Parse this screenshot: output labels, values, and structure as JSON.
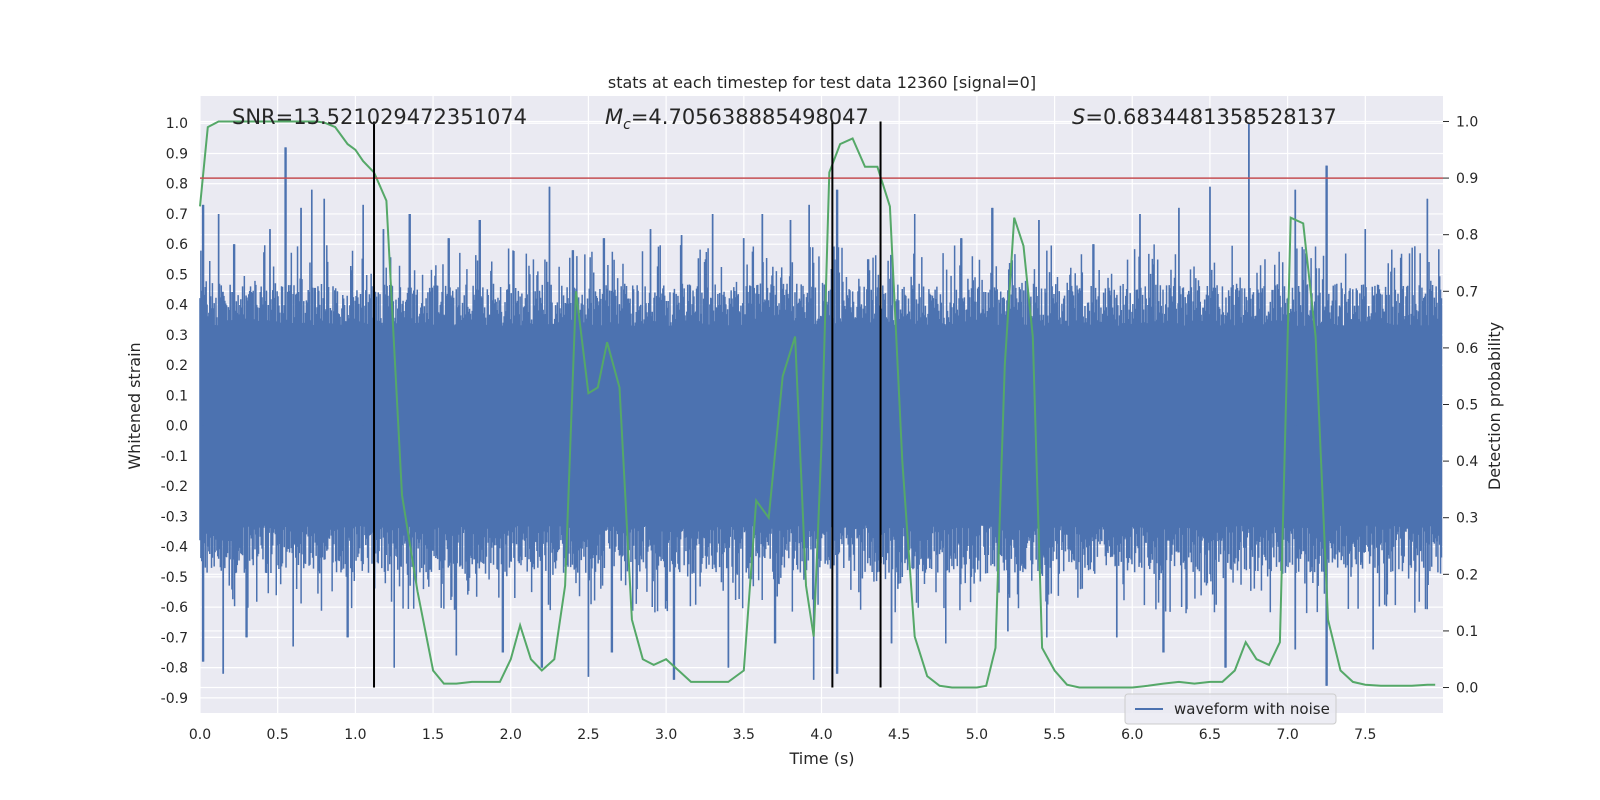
{
  "chart_data": {
    "type": "line",
    "title": "stats at each timestep for test data 12360 [signal=0]",
    "xlabel": "Time (s)",
    "ylabel": "Whitened strain",
    "ylabel_right": "Detection probability",
    "xlim": [
      0.0,
      8.0
    ],
    "ylim": [
      -0.95,
      1.09
    ],
    "ylim_right": [
      -0.045,
      1.045
    ],
    "x_ticks": [
      "0.0",
      "0.5",
      "1.0",
      "1.5",
      "2.0",
      "2.5",
      "3.0",
      "3.5",
      "4.0",
      "4.5",
      "5.0",
      "5.5",
      "6.0",
      "6.5",
      "7.0",
      "7.5"
    ],
    "y_ticks": [
      "1.0",
      "0.9",
      "0.8",
      "0.7",
      "0.6",
      "0.5",
      "0.4",
      "0.3",
      "0.2",
      "0.1",
      "0.0",
      "-0.1",
      "-0.2",
      "-0.3",
      "-0.4",
      "-0.5",
      "-0.6",
      "-0.7",
      "-0.8",
      "-0.9"
    ],
    "y_ticks_right": [
      "1.0",
      "0.9",
      "0.8",
      "0.7",
      "0.6",
      "0.5",
      "0.4",
      "0.3",
      "0.2",
      "0.1",
      "0.0"
    ],
    "annotations": {
      "snr": "SNR=13.521029472351074",
      "mc_symbol": "M",
      "mc_sub": "c",
      "mc_value": "=4.705638885498047",
      "s_symbol": "S",
      "s_value": "=0.6834481358528137"
    },
    "legend": {
      "label": "waveform with noise",
      "placement": "lower-right"
    },
    "threshold": {
      "value": 0.9,
      "axis": "right",
      "color": "#c44e52"
    },
    "vertical_lines": [
      1.12,
      4.07,
      4.38
    ],
    "vertical_lines_range": [
      0.0,
      1.0
    ],
    "series": [
      {
        "name": "waveform with noise",
        "axis": "left",
        "color": "#4c72b0",
        "base_envelope": 0.33,
        "peaks": [
          [
            0.02,
            0.73
          ],
          [
            0.12,
            0.7
          ],
          [
            0.22,
            0.6
          ],
          [
            0.45,
            0.65
          ],
          [
            0.55,
            0.92
          ],
          [
            0.65,
            0.72
          ],
          [
            0.72,
            0.78
          ],
          [
            0.8,
            0.75
          ],
          [
            1.05,
            0.73
          ],
          [
            1.18,
            0.65
          ],
          [
            1.35,
            0.7
          ],
          [
            1.6,
            0.62
          ],
          [
            1.8,
            0.68
          ],
          [
            2.25,
            0.79
          ],
          [
            2.4,
            0.58
          ],
          [
            2.6,
            0.62
          ],
          [
            2.9,
            0.65
          ],
          [
            3.1,
            0.63
          ],
          [
            3.3,
            0.7
          ],
          [
            3.5,
            0.62
          ],
          [
            3.62,
            0.7
          ],
          [
            3.8,
            0.68
          ],
          [
            3.92,
            0.73
          ],
          [
            4.1,
            0.78
          ],
          [
            4.3,
            0.55
          ],
          [
            4.6,
            0.7
          ],
          [
            4.9,
            0.62
          ],
          [
            5.1,
            0.72
          ],
          [
            5.4,
            0.68
          ],
          [
            5.75,
            0.6
          ],
          [
            6.05,
            0.7
          ],
          [
            6.3,
            0.72
          ],
          [
            6.5,
            0.79
          ],
          [
            6.75,
            1.0
          ],
          [
            7.05,
            0.78
          ],
          [
            7.25,
            0.86
          ],
          [
            7.5,
            0.65
          ],
          [
            7.9,
            0.75
          ]
        ],
        "troughs": [
          [
            0.02,
            -0.78
          ],
          [
            0.15,
            -0.82
          ],
          [
            0.3,
            -0.7
          ],
          [
            0.6,
            -0.73
          ],
          [
            0.95,
            -0.7
          ],
          [
            1.25,
            -0.8
          ],
          [
            1.65,
            -0.76
          ],
          [
            1.95,
            -0.75
          ],
          [
            2.2,
            -0.8
          ],
          [
            2.5,
            -0.83
          ],
          [
            2.65,
            -0.75
          ],
          [
            3.05,
            -0.84
          ],
          [
            3.4,
            -0.8
          ],
          [
            3.7,
            -0.72
          ],
          [
            3.95,
            -0.84
          ],
          [
            4.1,
            -0.82
          ],
          [
            4.45,
            -0.72
          ],
          [
            4.8,
            -0.72
          ],
          [
            5.2,
            -0.68
          ],
          [
            5.45,
            -0.7
          ],
          [
            5.9,
            -0.7
          ],
          [
            6.2,
            -0.75
          ],
          [
            6.6,
            -0.8
          ],
          [
            7.05,
            -0.74
          ],
          [
            7.25,
            -0.86
          ],
          [
            7.55,
            -0.74
          ]
        ]
      },
      {
        "name": "detection probability",
        "axis": "right",
        "color": "#55a868",
        "x": [
          0.0,
          0.05,
          0.12,
          0.2,
          0.3,
          0.4,
          0.5,
          0.6,
          0.7,
          0.75,
          0.8,
          0.87,
          0.95,
          1.0,
          1.05,
          1.12,
          1.2,
          1.3,
          1.4,
          1.5,
          1.57,
          1.65,
          1.75,
          1.85,
          1.93,
          2.0,
          2.06,
          2.13,
          2.2,
          2.28,
          2.35,
          2.42,
          2.5,
          2.56,
          2.62,
          2.7,
          2.78,
          2.85,
          2.92,
          3.0,
          3.08,
          3.16,
          3.25,
          3.33,
          3.4,
          3.5,
          3.58,
          3.66,
          3.75,
          3.83,
          3.9,
          3.95,
          4.0,
          4.05,
          4.12,
          4.2,
          4.28,
          4.36,
          4.44,
          4.52,
          4.6,
          4.68,
          4.76,
          4.84,
          4.92,
          5.0,
          5.06,
          5.12,
          5.18,
          5.24,
          5.3,
          5.36,
          5.42,
          5.5,
          5.58,
          5.66,
          5.74,
          5.82,
          5.9,
          6.0,
          6.1,
          6.2,
          6.3,
          6.4,
          6.5,
          6.58,
          6.66,
          6.73,
          6.8,
          6.88,
          6.95,
          7.02,
          7.1,
          7.18,
          7.26,
          7.34,
          7.42,
          7.5,
          7.6,
          7.7,
          7.8,
          7.9,
          7.95
        ],
        "y": [
          0.85,
          0.99,
          1.0,
          1.0,
          1.0,
          1.0,
          1.0,
          1.0,
          1.0,
          1.0,
          0.998,
          0.99,
          0.96,
          0.95,
          0.93,
          0.91,
          0.86,
          0.34,
          0.17,
          0.03,
          0.007,
          0.007,
          0.01,
          0.01,
          0.01,
          0.05,
          0.11,
          0.05,
          0.03,
          0.05,
          0.18,
          0.7,
          0.52,
          0.53,
          0.61,
          0.53,
          0.12,
          0.05,
          0.04,
          0.05,
          0.03,
          0.01,
          0.01,
          0.01,
          0.01,
          0.03,
          0.33,
          0.3,
          0.55,
          0.62,
          0.18,
          0.09,
          0.43,
          0.91,
          0.96,
          0.97,
          0.92,
          0.92,
          0.85,
          0.4,
          0.09,
          0.02,
          0.003,
          0.0,
          0.0,
          0.0,
          0.003,
          0.07,
          0.57,
          0.83,
          0.78,
          0.62,
          0.07,
          0.03,
          0.005,
          0.0,
          0.0,
          0.0,
          0.0,
          0.0,
          0.003,
          0.007,
          0.01,
          0.007,
          0.01,
          0.01,
          0.03,
          0.08,
          0.05,
          0.04,
          0.08,
          0.83,
          0.82,
          0.62,
          0.12,
          0.03,
          0.01,
          0.005,
          0.003,
          0.003,
          0.003,
          0.005,
          0.005
        ]
      }
    ]
  }
}
